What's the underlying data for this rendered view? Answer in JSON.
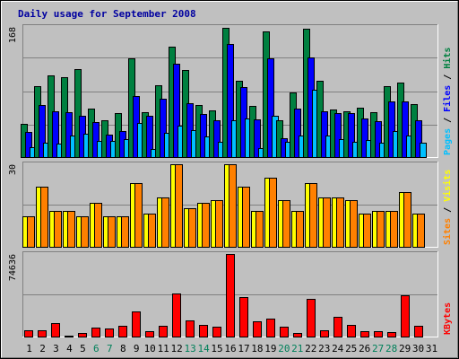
{
  "chart_data": {
    "type": "bar",
    "title": "Daily usage for September 2008",
    "categories": [
      "1",
      "2",
      "3",
      "4",
      "5",
      "6",
      "7",
      "8",
      "9",
      "10",
      "11",
      "12",
      "13",
      "14",
      "15",
      "16",
      "17",
      "18",
      "19",
      "20",
      "21",
      "22",
      "23",
      "24",
      "25",
      "26",
      "27",
      "28",
      "29",
      "30",
      "31"
    ],
    "weekend_days": [
      "6",
      "7",
      "13",
      "14",
      "20",
      "21",
      "27",
      "28"
    ],
    "panels": [
      {
        "id": "hits",
        "ymax_label": "168",
        "ymax": 168,
        "right_label_parts": [
          {
            "text": "Pages",
            "color": "#00c0ff"
          },
          {
            "text": " / ",
            "color": "#000000"
          },
          {
            "text": "Files",
            "color": "#0000ff"
          },
          {
            "text": " / ",
            "color": "#000000"
          },
          {
            "text": "Hits",
            "color": "#008040"
          }
        ],
        "series": [
          {
            "name": "Hits",
            "color": "#008040",
            "values": [
              43,
              91,
              105,
              103,
              114,
              62,
              48,
              57,
              128,
              58,
              93,
              143,
              112,
              67,
              60,
              167,
              99,
              66,
              162,
              47,
              84,
              166,
              99,
              61,
              59,
              64,
              58,
              91,
              96,
              68,
              0
            ]
          },
          {
            "name": "Files",
            "color": "#0000ff",
            "values": [
              33,
              67,
              59,
              58,
              53,
              45,
              29,
              34,
              79,
              53,
              75,
              121,
              70,
              56,
              48,
              146,
              90,
              49,
              127,
              24,
              62,
              129,
              59,
              57,
              57,
              50,
              46,
              72,
              72,
              47,
              0
            ]
          },
          {
            "name": "Pages",
            "color": "#00c0ff",
            "values": [
              13,
              19,
              17,
              28,
              30,
              21,
              21,
              23,
              44,
              10,
              31,
              40,
              35,
              27,
              20,
              47,
              50,
              12,
              53,
              20,
              28,
              87,
              28,
              23,
              20,
              22,
              18,
              34,
              28,
              18,
              0
            ]
          }
        ]
      },
      {
        "id": "visits",
        "ymax_label": "30",
        "ymax": 30,
        "right_label_parts": [
          {
            "text": "Sites",
            "color": "#ff8000"
          },
          {
            "text": " / ",
            "color": "#000000"
          },
          {
            "text": "Visits",
            "color": "#ffff00"
          }
        ],
        "series": [
          {
            "name": "Visits",
            "color": "#ffff00",
            "values": [
              11,
              22,
              13,
              13,
              11,
              16,
              11,
              11,
              23,
              12,
              18,
              30,
              14,
              16,
              17,
              30,
              22,
              13,
              25,
              17,
              13,
              23,
              18,
              18,
              17,
              12,
              13,
              13,
              20,
              12,
              0
            ]
          },
          {
            "name": "Sites",
            "color": "#ff8000",
            "values": [
              11,
              22,
              13,
              13,
              11,
              16,
              11,
              11,
              23,
              12,
              18,
              30,
              14,
              16,
              17,
              30,
              22,
              13,
              25,
              17,
              13,
              23,
              18,
              18,
              17,
              12,
              13,
              13,
              20,
              12,
              0
            ]
          }
        ]
      },
      {
        "id": "kbytes",
        "ymax_label": "74636",
        "ymax": 74636,
        "right_label_parts": [
          {
            "text": "KBytes",
            "color": "#ff0000"
          }
        ],
        "series": [
          {
            "name": "KBytes",
            "color": "#ff0000",
            "values": [
              5500,
              6000,
              12500,
              1000,
              3500,
              8500,
              7000,
              9500,
              22500,
              5000,
              10000,
              39000,
              14500,
              10500,
              9000,
              74636,
              36000,
              14000,
              16000,
              9000,
              3500,
              34000,
              6000,
              17500,
              10500,
              4500,
              5000,
              4000,
              37000,
              10000,
              0
            ]
          }
        ]
      }
    ]
  }
}
